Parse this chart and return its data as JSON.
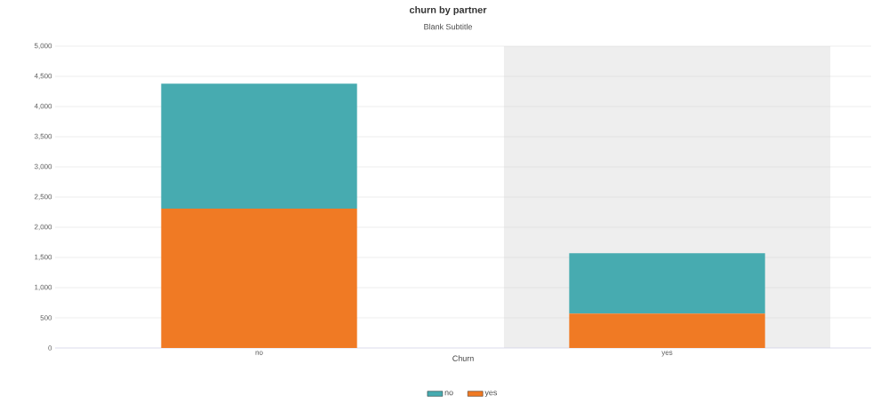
{
  "chart_data": {
    "type": "bar",
    "title": "churn by partner",
    "subtitle": "Blank Subtitle",
    "xlabel": "Churn",
    "categories": [
      "no",
      "yes"
    ],
    "series": [
      {
        "name": "yes",
        "color": "#f07a24",
        "values": [
          2310,
          570
        ]
      },
      {
        "name": "no",
        "color": "#47abb0",
        "values": [
          2070,
          1000
        ]
      }
    ],
    "stacked": true,
    "ylim": [
      0,
      5000
    ],
    "yticks": [
      0,
      {
        "value": 500,
        "label": "500"
      },
      {
        "value": 1000,
        "label": "1,000"
      },
      {
        "value": 1500,
        "label": "1,500"
      },
      {
        "value": 2000,
        "label": "2,000"
      },
      {
        "value": 2500,
        "label": "2,500"
      },
      {
        "value": 3000,
        "label": "3,000"
      },
      {
        "value": 3500,
        "label": "3,500"
      },
      {
        "value": 4000,
        "label": "4,000"
      },
      {
        "value": 4500,
        "label": "4,500"
      },
      {
        "value": 5000,
        "label": "5,000"
      }
    ],
    "bands": [
      {
        "axis": "x",
        "from": "yes",
        "to": "yes",
        "color": "#eeeeee"
      }
    ],
    "grid": "y",
    "legend": "bottom"
  }
}
